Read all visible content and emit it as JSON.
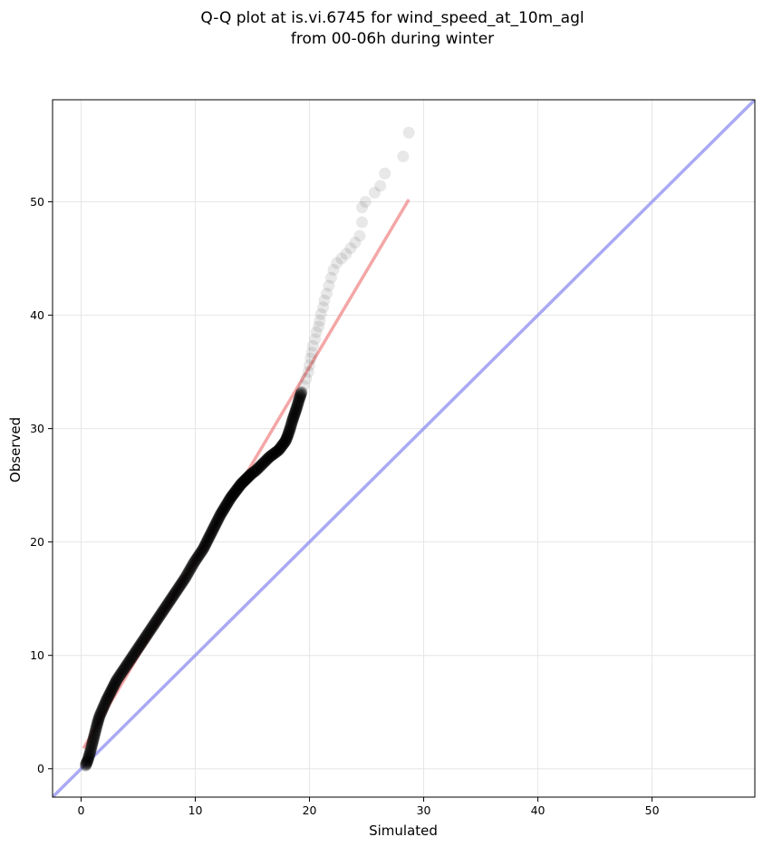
{
  "chart_data": {
    "type": "scatter",
    "title_line1": "Q-Q plot at is.vi.6745 for wind_speed_at_10m_agl",
    "title_line2": "from 00-06h during winter",
    "xlabel": "Simulated",
    "ylabel": "Observed",
    "xlim": [
      -2.5,
      59
    ],
    "ylim": [
      -2.5,
      59
    ],
    "xticks": [
      0,
      10,
      20,
      30,
      40,
      50
    ],
    "yticks": [
      0,
      10,
      20,
      30,
      40,
      50
    ],
    "xtick_labels": [
      "0",
      "10",
      "20",
      "30",
      "40",
      "50"
    ],
    "ytick_labels": [
      "0",
      "10",
      "20",
      "30",
      "40",
      "50"
    ],
    "grid": true,
    "colors": {
      "points": "#000000",
      "fit_line": "#f08080",
      "identity_line": "#8c8cf0",
      "grid": "#e6e6e6"
    },
    "identity_line": {
      "x": [
        -2.5,
        59
      ],
      "y": [
        -2.5,
        59
      ]
    },
    "fit_line": {
      "x": [
        0.2,
        28.7
      ],
      "y": [
        1.8,
        50.2
      ]
    },
    "dense_points": [
      [
        0.4,
        0.3
      ],
      [
        0.6,
        0.8
      ],
      [
        0.8,
        1.5
      ],
      [
        1.0,
        2.3
      ],
      [
        1.2,
        3.1
      ],
      [
        1.4,
        3.9
      ],
      [
        1.6,
        4.6
      ],
      [
        1.9,
        5.3
      ],
      [
        2.2,
        6.0
      ],
      [
        2.5,
        6.6
      ],
      [
        2.8,
        7.2
      ],
      [
        3.1,
        7.8
      ],
      [
        3.5,
        8.4
      ],
      [
        3.9,
        9.0
      ],
      [
        4.3,
        9.6
      ],
      [
        4.7,
        10.2
      ],
      [
        5.1,
        10.8
      ],
      [
        5.5,
        11.4
      ],
      [
        5.9,
        12.0
      ],
      [
        6.3,
        12.6
      ],
      [
        6.7,
        13.2
      ],
      [
        7.1,
        13.8
      ],
      [
        7.5,
        14.4
      ],
      [
        7.9,
        15.0
      ],
      [
        8.3,
        15.6
      ],
      [
        8.7,
        16.2
      ],
      [
        9.1,
        16.8
      ],
      [
        9.5,
        17.5
      ],
      [
        9.9,
        18.2
      ],
      [
        10.3,
        18.8
      ],
      [
        10.7,
        19.4
      ],
      [
        11.0,
        20.0
      ],
      [
        11.3,
        20.6
      ],
      [
        11.6,
        21.2
      ],
      [
        11.9,
        21.8
      ],
      [
        12.2,
        22.4
      ],
      [
        12.5,
        22.9
      ],
      [
        12.8,
        23.4
      ],
      [
        13.1,
        23.9
      ],
      [
        13.4,
        24.3
      ],
      [
        13.7,
        24.7
      ],
      [
        14.0,
        25.1
      ],
      [
        14.3,
        25.4
      ],
      [
        14.6,
        25.7
      ],
      [
        14.9,
        26.0
      ],
      [
        15.3,
        26.3
      ],
      [
        15.7,
        26.7
      ],
      [
        16.1,
        27.1
      ],
      [
        16.5,
        27.5
      ],
      [
        16.9,
        27.8
      ],
      [
        17.3,
        28.1
      ],
      [
        17.6,
        28.5
      ],
      [
        17.9,
        28.9
      ],
      [
        18.1,
        29.4
      ],
      [
        18.3,
        30.0
      ],
      [
        18.5,
        30.7
      ],
      [
        18.7,
        31.3
      ],
      [
        18.9,
        31.9
      ],
      [
        19.1,
        32.6
      ],
      [
        19.3,
        33.2
      ]
    ],
    "sparse_points": [
      [
        19.5,
        33.8
      ],
      [
        19.7,
        34.4
      ],
      [
        19.9,
        35.0
      ],
      [
        20.0,
        35.6
      ],
      [
        20.1,
        36.2
      ],
      [
        20.2,
        36.7
      ],
      [
        20.3,
        37.3
      ],
      [
        20.5,
        37.9
      ],
      [
        20.6,
        38.5
      ],
      [
        20.8,
        39.0
      ],
      [
        20.9,
        39.5
      ],
      [
        21.0,
        40.1
      ],
      [
        21.2,
        40.7
      ],
      [
        21.3,
        41.3
      ],
      [
        21.5,
        41.9
      ],
      [
        21.7,
        42.6
      ],
      [
        21.9,
        43.3
      ],
      [
        22.1,
        44.0
      ],
      [
        22.4,
        44.6
      ],
      [
        22.8,
        45.0
      ],
      [
        23.2,
        45.4
      ],
      [
        23.6,
        45.9
      ],
      [
        24.0,
        46.4
      ],
      [
        24.4,
        47.0
      ],
      [
        24.6,
        48.2
      ],
      [
        24.6,
        49.5
      ],
      [
        24.9,
        50.0
      ],
      [
        25.7,
        50.8
      ],
      [
        26.2,
        51.4
      ],
      [
        26.6,
        52.5
      ],
      [
        28.2,
        54.0
      ],
      [
        28.7,
        56.1
      ]
    ]
  }
}
